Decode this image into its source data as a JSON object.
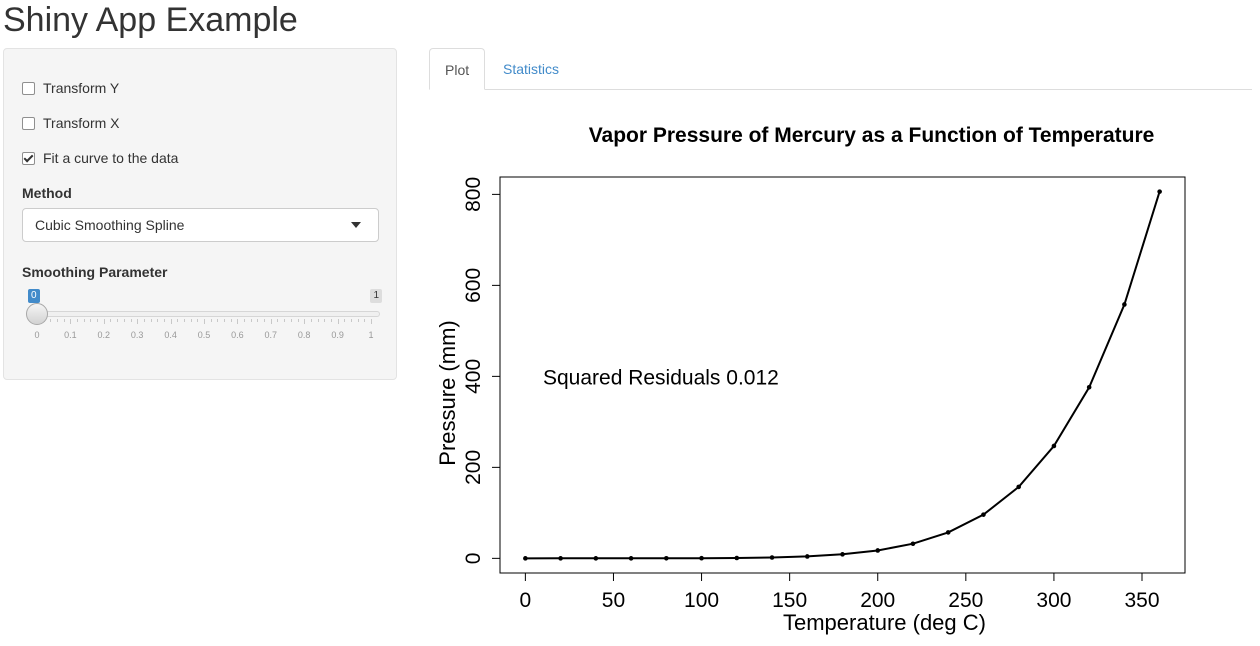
{
  "app": {
    "title": "Shiny App Example"
  },
  "sidebar": {
    "checkboxes": [
      {
        "label": "Transform Y",
        "checked": false
      },
      {
        "label": "Transform X",
        "checked": false
      },
      {
        "label": "Fit a curve to the data",
        "checked": true
      }
    ],
    "method": {
      "label": "Method",
      "selected": "Cubic Smoothing Spline"
    },
    "smoothing": {
      "label": "Smoothing Parameter",
      "min_label": "0",
      "max_label": "1",
      "value": 0,
      "ticks": [
        "0",
        "0.1",
        "0.2",
        "0.3",
        "0.4",
        "0.5",
        "0.6",
        "0.7",
        "0.8",
        "0.9",
        "1"
      ]
    }
  },
  "tabs": [
    {
      "label": "Plot",
      "active": true
    },
    {
      "label": "Statistics",
      "active": false
    }
  ],
  "chart_data": {
    "type": "line",
    "title": "Vapor Pressure of Mercury as a Function of Temperature",
    "xlabel": "Temperature (deg C)",
    "ylabel": "Pressure (mm)",
    "annotation": "Squared Residuals 0.012",
    "xlim": [
      -14.4,
      374.4
    ],
    "ylim": [
      -32.2,
      838.2
    ],
    "xticks": [
      0,
      50,
      100,
      150,
      200,
      250,
      300,
      350
    ],
    "yticks": [
      0,
      200,
      400,
      600,
      800
    ],
    "x": [
      0,
      20,
      40,
      60,
      80,
      100,
      120,
      140,
      160,
      180,
      200,
      220,
      240,
      260,
      280,
      300,
      320,
      340,
      360
    ],
    "y": [
      0.0002,
      0.0012,
      0.006,
      0.03,
      0.09,
      0.27,
      0.75,
      1.85,
      4.2,
      8.8,
      17.3,
      32.1,
      57.0,
      96.0,
      157.0,
      247.0,
      376.0,
      558.0,
      806.0
    ],
    "grid": false,
    "legend": "none"
  }
}
